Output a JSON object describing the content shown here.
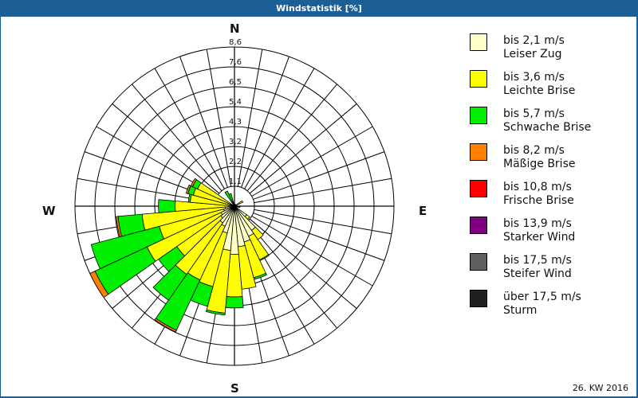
{
  "title": "Windstatistik [%]",
  "footer": "26. KW 2016",
  "compass": {
    "n": "N",
    "e": "E",
    "s": "S",
    "w": "W"
  },
  "ring_labels": [
    "1,1",
    "2,2",
    "3,2",
    "4,3",
    "5,4",
    "6,5",
    "7,6",
    "8,6"
  ],
  "legend": [
    {
      "range": "bis 2,1 m/s",
      "name": "Leiser Zug",
      "color": "#ffffc8"
    },
    {
      "range": "bis 3,6 m/s",
      "name": "Leichte Brise",
      "color": "#ffff00"
    },
    {
      "range": "bis 5,7 m/s",
      "name": "Schwache Brise",
      "color": "#00ee00"
    },
    {
      "range": "bis 8,2 m/s",
      "name": "Mäßige Brise",
      "color": "#ff7f00"
    },
    {
      "range": "bis 10,8 m/s",
      "name": "Frische Brise",
      "color": "#ff0000"
    },
    {
      "range": "bis 13,9 m/s",
      "name": "Starker Wind",
      "color": "#800080"
    },
    {
      "range": "bis 17,5 m/s",
      "name": "Steifer Wind",
      "color": "#606060"
    },
    {
      "range": "über 17,5 m/s",
      "name": "Sturm",
      "color": "#202020"
    }
  ],
  "chart_data": {
    "type": "polar-stacked-bar (wind rose)",
    "title": "Windstatistik [%]",
    "unit": "%",
    "radial_ticks": [
      1.1,
      2.2,
      3.2,
      4.3,
      5.4,
      6.5,
      7.6,
      8.6
    ],
    "rmax": 8.6,
    "sector_width_deg": 10,
    "bands": [
      "bis 2,1 m/s",
      "bis 3,6 m/s",
      "bis 5,7 m/s",
      "bis 8,2 m/s",
      "bis 10,8 m/s",
      "bis 13,9 m/s",
      "bis 17,5 m/s",
      "über 17,5 m/s"
    ],
    "note": "cumulative outer value (%) per band; estimated from pixels",
    "sectors": [
      {
        "dir": 60,
        "cum": [
          0.1,
          0.5,
          0.5,
          0.5
        ]
      },
      {
        "dir": 100,
        "cum": [
          0.2,
          0.3,
          0.3,
          0.3
        ]
      },
      {
        "dir": 130,
        "cum": [
          0.8,
          1.0,
          1.0,
          1.0
        ]
      },
      {
        "dir": 140,
        "cum": [
          1.6,
          2.2,
          2.2,
          2.2
        ]
      },
      {
        "dir": 150,
        "cum": [
          1.8,
          3.2,
          3.25,
          3.25
        ]
      },
      {
        "dir": 160,
        "cum": [
          2.0,
          4.0,
          4.1,
          4.1
        ]
      },
      {
        "dir": 170,
        "cum": [
          2.2,
          4.5,
          4.5,
          4.5
        ]
      },
      {
        "dir": 180,
        "cum": [
          2.6,
          4.9,
          5.5,
          5.5
        ]
      },
      {
        "dir": 190,
        "cum": [
          2.4,
          5.8,
          5.9,
          5.9
        ]
      },
      {
        "dir": 200,
        "cum": [
          1.5,
          4.5,
          5.6,
          5.6
        ]
      },
      {
        "dir": 210,
        "cum": [
          1.2,
          4.4,
          7.4,
          7.5
        ]
      },
      {
        "dir": 220,
        "cum": [
          1.1,
          4.5,
          6.2,
          6.2
        ]
      },
      {
        "dir": 230,
        "cum": [
          0.9,
          3.8,
          5.0,
          5.0
        ]
      },
      {
        "dir": 240,
        "cum": [
          0.8,
          5.2,
          8.3,
          8.6
        ]
      },
      {
        "dir": 250,
        "cum": [
          0.6,
          4.2,
          8.0,
          8.0
        ]
      },
      {
        "dir": 260,
        "cum": [
          0.5,
          5.0,
          6.3,
          6.4
        ]
      },
      {
        "dir": 270,
        "cum": [
          0.3,
          3.2,
          4.1,
          4.1
        ]
      },
      {
        "dir": 280,
        "cum": [
          0.2,
          2.4,
          2.5,
          2.5
        ]
      },
      {
        "dir": 290,
        "cum": [
          0.2,
          2.3,
          2.6,
          2.7
        ]
      },
      {
        "dir": 300,
        "cum": [
          0.1,
          2.2,
          2.5,
          2.6
        ]
      },
      {
        "dir": 330,
        "cum": [
          0.1,
          0.2,
          0.9,
          0.9
        ]
      },
      {
        "dir": 340,
        "cum": [
          0.1,
          0.2,
          0.7,
          0.7
        ]
      }
    ]
  }
}
